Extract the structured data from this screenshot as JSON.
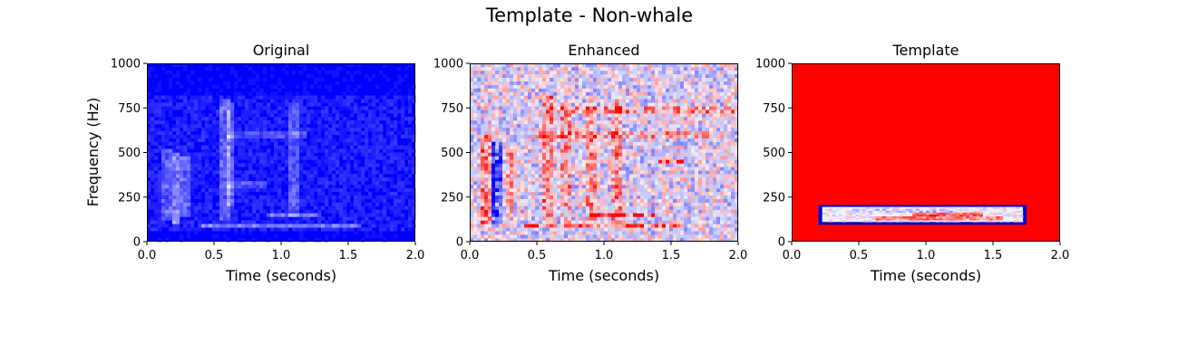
{
  "figure": {
    "suptitle": "Template - Non-whale",
    "ylabel": "Frequency (Hz)"
  },
  "chart_data": [
    {
      "type": "heatmap",
      "title": "Original",
      "xlabel": "Time (seconds)",
      "xlim": [
        0.0,
        2.0
      ],
      "ylim": [
        0,
        1000
      ],
      "xticks": [
        "0.0",
        "0.5",
        "1.0",
        "1.5",
        "2.0"
      ],
      "yticks": [
        "0",
        "250",
        "500",
        "750",
        "1000"
      ],
      "colormap": "blue-white",
      "background_color": "#0000ff",
      "features": [
        {
          "kind": "vertical_streak",
          "t": 0.15,
          "f_range": [
            120,
            520
          ],
          "intensity": 0.35
        },
        {
          "kind": "vertical_streak",
          "t": 0.22,
          "f_range": [
            100,
            500
          ],
          "intensity": 0.55
        },
        {
          "kind": "vertical_streak",
          "t": 0.28,
          "f_range": [
            150,
            480
          ],
          "intensity": 0.4
        },
        {
          "kind": "vertical_streak",
          "t": 0.58,
          "f_range": [
            120,
            800
          ],
          "intensity": 0.4
        },
        {
          "kind": "vertical_streak",
          "t": 0.62,
          "f_range": [
            200,
            780
          ],
          "intensity": 0.35
        },
        {
          "kind": "vertical_streak",
          "t": 1.1,
          "f_range": [
            150,
            780
          ],
          "intensity": 0.35
        },
        {
          "kind": "horizontal_band",
          "f": 90,
          "t_range": [
            0.4,
            1.6
          ],
          "intensity": 0.45
        },
        {
          "kind": "horizontal_band",
          "f": 150,
          "t_range": [
            0.9,
            1.3
          ],
          "intensity": 0.5
        },
        {
          "kind": "horizontal_band",
          "f": 600,
          "t_range": [
            0.6,
            1.2
          ],
          "intensity": 0.25
        },
        {
          "kind": "horizontal_band",
          "f": 320,
          "t_range": [
            0.6,
            0.9
          ],
          "intensity": 0.3
        }
      ]
    },
    {
      "type": "heatmap",
      "title": "Enhanced",
      "xlabel": "Time (seconds)",
      "xlim": [
        0.0,
        2.0
      ],
      "ylim": [
        0,
        1000
      ],
      "xticks": [
        "0.0",
        "0.5",
        "1.0",
        "1.5",
        "2.0"
      ],
      "yticks": [
        "0",
        "250",
        "500",
        "750",
        "1000"
      ],
      "colormap": "blue-white-red",
      "background_color": "#c8ccf4",
      "features": [
        {
          "kind": "vertical_streak",
          "t": 0.12,
          "f_range": [
            100,
            600
          ],
          "intensity": 0.7
        },
        {
          "kind": "vertical_streak",
          "t": 0.2,
          "f_range": [
            100,
            550
          ],
          "intensity": -0.8
        },
        {
          "kind": "vertical_streak",
          "t": 0.3,
          "f_range": [
            120,
            500
          ],
          "intensity": 0.6
        },
        {
          "kind": "vertical_streak",
          "t": 0.58,
          "f_range": [
            100,
            820
          ],
          "intensity": 0.6
        },
        {
          "kind": "vertical_streak",
          "t": 0.72,
          "f_range": [
            100,
            800
          ],
          "intensity": 0.5
        },
        {
          "kind": "vertical_streak",
          "t": 0.9,
          "f_range": [
            100,
            800
          ],
          "intensity": 0.55
        },
        {
          "kind": "vertical_streak",
          "t": 1.1,
          "f_range": [
            100,
            800
          ],
          "intensity": 0.6
        },
        {
          "kind": "horizontal_band",
          "f": 150,
          "t_range": [
            0.9,
            1.4
          ],
          "intensity": 0.9
        },
        {
          "kind": "horizontal_band",
          "f": 90,
          "t_range": [
            0.4,
            1.6
          ],
          "intensity": 0.8
        },
        {
          "kind": "horizontal_band",
          "f": 450,
          "t_range": [
            1.4,
            1.6
          ],
          "intensity": 0.85
        },
        {
          "kind": "horizontal_band",
          "f": 740,
          "t_range": [
            0.6,
            2.0
          ],
          "intensity": 0.55
        },
        {
          "kind": "horizontal_band",
          "f": 600,
          "t_range": [
            0.5,
            1.9
          ],
          "intensity": 0.45
        }
      ]
    },
    {
      "type": "heatmap",
      "title": "Template",
      "xlabel": "Time (seconds)",
      "xlim": [
        0.0,
        2.0
      ],
      "ylim": [
        0,
        1000
      ],
      "xticks": [
        "0.0",
        "0.5",
        "1.0",
        "1.5",
        "2.0"
      ],
      "yticks": [
        "0",
        "250",
        "500",
        "750",
        "1000"
      ],
      "colormap": "blue-white-red",
      "background_color": "#ff0000",
      "template_patch": {
        "t_range": [
          0.2,
          1.75
        ],
        "f_range": [
          95,
          205
        ],
        "border_color": "#0000cc",
        "fill_color": "#f0f2ff",
        "features": [
          {
            "kind": "horizontal_band",
            "f": 150,
            "t_range": [
              0.9,
              1.45
            ],
            "intensity": 0.9
          },
          {
            "kind": "horizontal_band",
            "f": 125,
            "t_range": [
              0.6,
              1.6
            ],
            "intensity": 0.6
          },
          {
            "kind": "horizontal_band",
            "f": 175,
            "t_range": [
              0.4,
              1.2
            ],
            "intensity": -0.3
          }
        ]
      }
    }
  ]
}
